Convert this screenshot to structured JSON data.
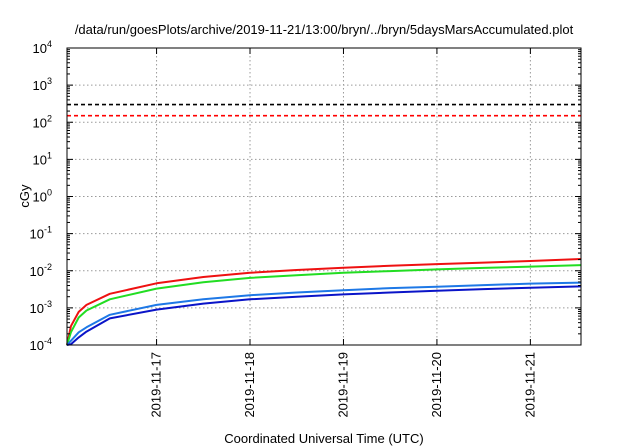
{
  "chart_data": {
    "type": "line",
    "title": "/data/run/goesPlots/archive/2019-11-21/13:00/bryn/../bryn/5daysMarsAccumulated.plot",
    "xlabel": "Coordinated Universal Time (UTC)",
    "ylabel": "cGy",
    "x_range": [
      "2019-11-16 01:00",
      "2019-11-21 13:00"
    ],
    "x_ticks": [
      "2019-11-17",
      "2019-11-18",
      "2019-11-19",
      "2019-11-20",
      "2019-11-21"
    ],
    "y_scale": "log",
    "ylim": [
      0.0001,
      10000
    ],
    "y_ticks": [
      {
        "base": "10",
        "exp": "-4"
      },
      {
        "base": "10",
        "exp": "-3"
      },
      {
        "base": "10",
        "exp": "-2"
      },
      {
        "base": "10",
        "exp": "-1"
      },
      {
        "base": "10",
        "exp": "0"
      },
      {
        "base": "10",
        "exp": "1"
      },
      {
        "base": "10",
        "exp": "2"
      },
      {
        "base": "10",
        "exp": "3"
      },
      {
        "base": "10",
        "exp": "4"
      }
    ],
    "grid": true,
    "reference_lines": [
      {
        "color": "#000000",
        "style": "dashed",
        "y": 300
      },
      {
        "color": "#ff0000",
        "style": "dashed",
        "y": 150
      }
    ],
    "series": [
      {
        "color": "#ee1111",
        "x": [
          "2019-11-16 01:00",
          "2019-11-16 02:00",
          "2019-11-16 04:00",
          "2019-11-16 06:00",
          "2019-11-16 12:00",
          "2019-11-17 00:00",
          "2019-11-17 12:00",
          "2019-11-18 00:00",
          "2019-11-18 12:00",
          "2019-11-19 00:00",
          "2019-11-19 12:00",
          "2019-11-20 00:00",
          "2019-11-20 12:00",
          "2019-11-21 00:00",
          "2019-11-21 13:00"
        ],
        "y": [
          0.0001,
          0.00032,
          0.00078,
          0.0012,
          0.0024,
          0.0046,
          0.0068,
          0.0088,
          0.0105,
          0.0121,
          0.0136,
          0.0151,
          0.0166,
          0.0183,
          0.0207
        ]
      },
      {
        "color": "#22dd22",
        "x": [
          "2019-11-16 01:00",
          "2019-11-16 02:00",
          "2019-11-16 04:00",
          "2019-11-16 06:00",
          "2019-11-16 12:00",
          "2019-11-17 00:00",
          "2019-11-17 12:00",
          "2019-11-18 00:00",
          "2019-11-18 12:00",
          "2019-11-19 00:00",
          "2019-11-19 12:00",
          "2019-11-20 00:00",
          "2019-11-20 12:00",
          "2019-11-21 00:00",
          "2019-11-21 13:00"
        ],
        "y": [
          0.0001,
          0.00022,
          0.00055,
          0.00085,
          0.0017,
          0.0033,
          0.0049,
          0.0064,
          0.0076,
          0.0088,
          0.0098,
          0.0109,
          0.0119,
          0.0129,
          0.0142
        ]
      },
      {
        "color": "#1e78e6",
        "x": [
          "2019-11-16 01:00",
          "2019-11-16 02:00",
          "2019-11-16 04:00",
          "2019-11-16 06:00",
          "2019-11-16 12:00",
          "2019-11-17 00:00",
          "2019-11-17 12:00",
          "2019-11-18 00:00",
          "2019-11-18 12:00",
          "2019-11-19 00:00",
          "2019-11-19 12:00",
          "2019-11-20 00:00",
          "2019-11-20 12:00",
          "2019-11-21 00:00",
          "2019-11-21 13:00"
        ],
        "y": [
          0.0001,
          0.00013,
          0.00022,
          0.0003,
          0.00065,
          0.0012,
          0.0017,
          0.0022,
          0.0026,
          0.003,
          0.0034,
          0.0037,
          0.0041,
          0.0045,
          0.0048
        ]
      },
      {
        "color": "#0a14c8",
        "x": [
          "2019-11-16 01:00",
          "2019-11-16 02:00",
          "2019-11-16 04:00",
          "2019-11-16 06:00",
          "2019-11-16 12:00",
          "2019-11-17 00:00",
          "2019-11-17 12:00",
          "2019-11-18 00:00",
          "2019-11-18 12:00",
          "2019-11-19 00:00",
          "2019-11-19 12:00",
          "2019-11-20 00:00",
          "2019-11-20 12:00",
          "2019-11-21 00:00",
          "2019-11-21 13:00"
        ],
        "y": [
          0.0001,
          0.000105,
          0.00016,
          0.00023,
          0.00052,
          0.0009,
          0.0013,
          0.0017,
          0.002,
          0.0023,
          0.0026,
          0.0029,
          0.0032,
          0.0035,
          0.0038
        ]
      }
    ]
  }
}
